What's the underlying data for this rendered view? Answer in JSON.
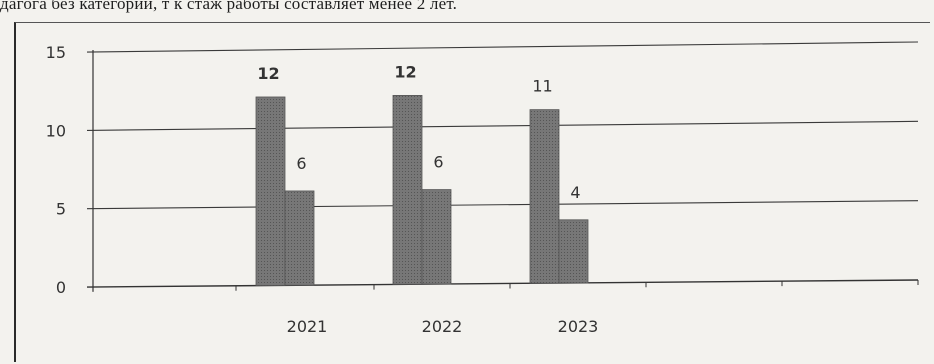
{
  "caption": "дагога без категории, т к стаж работы составляет менее 2 лет.",
  "chart_data": {
    "type": "bar",
    "categories": [
      "2021",
      "2022",
      "2023"
    ],
    "series": [
      {
        "values": [
          12,
          12,
          11
        ],
        "color": "#6e6e6e"
      },
      {
        "values": [
          6,
          6,
          4
        ],
        "color": "#6e6e6e"
      }
    ],
    "data_labels": [
      [
        "12",
        "12",
        "11"
      ],
      [
        "6",
        "6",
        "4"
      ]
    ],
    "y_ticks": [
      "0",
      "5",
      "10",
      "15"
    ],
    "ylim": [
      0,
      15
    ],
    "grid": true,
    "legend": "none"
  }
}
